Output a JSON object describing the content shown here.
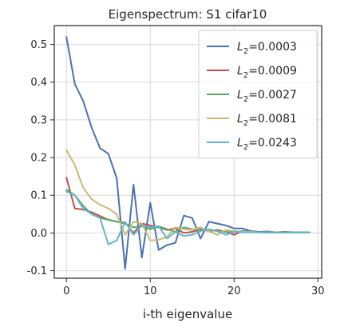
{
  "chart_data": {
    "type": "line",
    "title": "Eigenspectrum: S1 cifar10",
    "xlabel": "i-th eigenvalue",
    "ylabel": "",
    "xlim": [
      -1.45,
      30.45
    ],
    "ylim": [
      -0.12,
      0.55
    ],
    "xticks": [
      0,
      10,
      20,
      30
    ],
    "yticks": [
      -0.1,
      0.0,
      0.1,
      0.2,
      0.3,
      0.4,
      0.5
    ],
    "grid": true,
    "legend_position": "top-right",
    "x": [
      0,
      1,
      2,
      3,
      4,
      5,
      6,
      7,
      8,
      9,
      10,
      11,
      12,
      13,
      14,
      15,
      16,
      17,
      18,
      19,
      20,
      21,
      22,
      23,
      24,
      25,
      26,
      27,
      28,
      29
    ],
    "series": [
      {
        "name": "L2=0.0003",
        "legend_base": "L",
        "legend_sub": "2",
        "legend_value": "=0.0003",
        "color": "#4c72b0",
        "values": [
          0.52,
          0.395,
          0.35,
          0.28,
          0.225,
          0.21,
          0.145,
          -0.095,
          0.128,
          -0.065,
          0.08,
          -0.045,
          -0.032,
          -0.026,
          0.046,
          0.04,
          -0.015,
          0.03,
          0.025,
          0.02,
          0.012,
          0.012,
          0.005,
          0.003,
          0.004,
          0.002,
          0.003,
          0.002,
          0.002,
          0.002
        ]
      },
      {
        "name": "L2=0.0009",
        "legend_base": "L",
        "legend_sub": "2",
        "legend_value": "=0.0009",
        "color": "#c44e52",
        "values": [
          0.147,
          0.065,
          0.062,
          0.055,
          0.045,
          0.035,
          0.03,
          0.027,
          0.0,
          0.025,
          0.02,
          0.015,
          0.008,
          0.012,
          0.0,
          0.003,
          0.01,
          0.005,
          0.008,
          0.003,
          -0.005,
          0.005,
          0.003,
          0.002,
          0.002,
          0.002,
          0.002,
          0.001,
          0.001,
          0.001
        ]
      },
      {
        "name": "L2=0.0027",
        "legend_base": "L",
        "legend_sub": "2",
        "legend_value": "=0.0027",
        "color": "#55a868",
        "values": [
          0.115,
          0.1,
          0.072,
          0.05,
          0.04,
          0.035,
          0.03,
          0.025,
          0.015,
          0.018,
          0.01,
          0.018,
          0.01,
          0.003,
          0.015,
          0.01,
          0.008,
          0.008,
          0.005,
          0.003,
          0.002,
          0.005,
          0.002,
          0.002,
          0.001,
          0.002,
          0.001,
          0.001,
          0.001,
          0.001
        ]
      },
      {
        "name": "L2=0.0081",
        "legend_base": "L",
        "legend_sub": "2",
        "legend_value": "=0.0081",
        "color": "#ccb974",
        "values": [
          0.22,
          0.18,
          0.12,
          0.09,
          0.075,
          0.065,
          0.05,
          -0.005,
          0.03,
          0.025,
          -0.02,
          -0.018,
          -0.01,
          0.015,
          0.01,
          0.008,
          0.015,
          0.005,
          -0.005,
          0.008,
          0.005,
          0.003,
          0.003,
          0.002,
          0.002,
          0.002,
          0.001,
          0.001,
          0.001,
          0.001
        ]
      },
      {
        "name": "L2=0.0243",
        "legend_base": "L",
        "legend_sub": "2",
        "legend_value": "=0.0243",
        "color": "#64b5cd",
        "values": [
          0.11,
          0.1,
          0.065,
          0.05,
          0.04,
          -0.03,
          -0.02,
          0.03,
          -0.005,
          0.02,
          0.015,
          0.018,
          -0.015,
          0.003,
          -0.008,
          -0.005,
          0.005,
          0.01,
          0.005,
          -0.005,
          0.003,
          0.002,
          0.002,
          0.002,
          0.001,
          0.001,
          0.001,
          0.001,
          0.001,
          0.001
        ]
      }
    ]
  }
}
